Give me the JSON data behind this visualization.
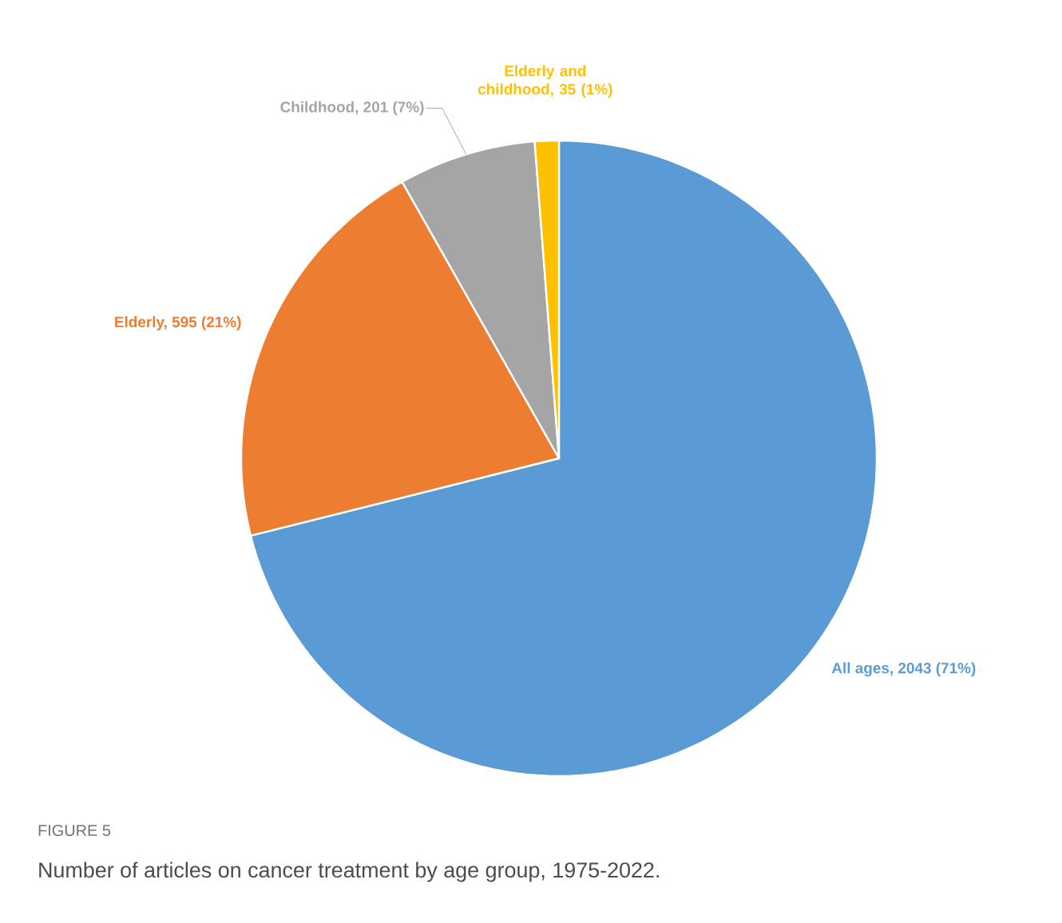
{
  "chart_data": {
    "type": "pie",
    "title": "Number of articles on cancer treatment by age group, 1975-2022.",
    "annotations": [
      "FIGURE 5"
    ],
    "categories": [
      "All ages, 2043 (71%)",
      "Elderly, 595 (21%)",
      "Childhood, 201 (7%)",
      "Elderly and childhood, 35 (1%)"
    ],
    "values": [
      2043,
      595,
      201,
      35
    ],
    "colors": [
      "#5b9bd5",
      "#ed7d31",
      "#a5a5a5",
      "#ffc000"
    ]
  }
}
